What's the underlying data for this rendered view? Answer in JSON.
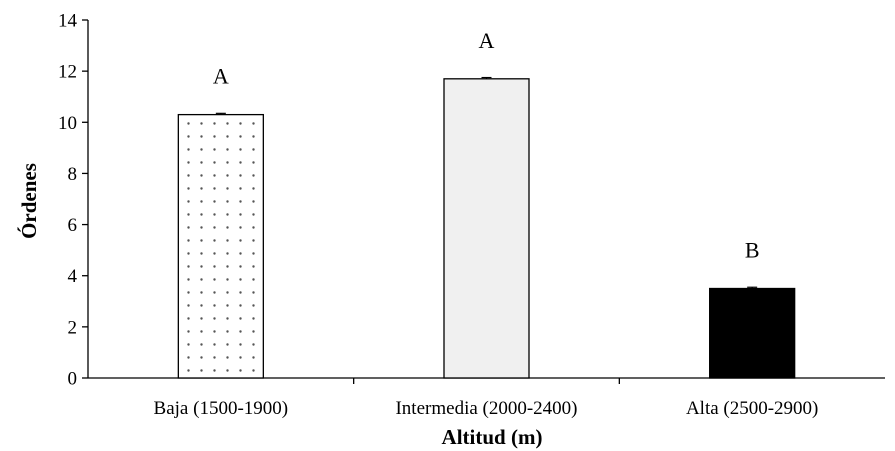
{
  "chart_data": {
    "type": "bar",
    "xlabel": "Altitud (m)",
    "ylabel": "Órdenes",
    "ylim": [
      0,
      14
    ],
    "yticks": [
      0,
      2,
      4,
      6,
      8,
      10,
      12,
      14
    ],
    "categories": [
      "Baja (1500-1900)",
      "Intermedia (2000-2400)",
      "Alta (2500-2900)"
    ],
    "values": [
      10.3,
      11.7,
      3.5
    ],
    "errors": [
      0.05,
      0.05,
      0.05
    ],
    "group_letters": [
      "A",
      "A",
      "B"
    ],
    "bar_fills": [
      "dotted",
      "light-gray",
      "black"
    ],
    "colors": {
      "dotted_fill": "#ffffff",
      "dot_color": "#555555",
      "light_gray": "#f0f0f0",
      "black": "#000000"
    },
    "grid": false,
    "legend": "none"
  }
}
